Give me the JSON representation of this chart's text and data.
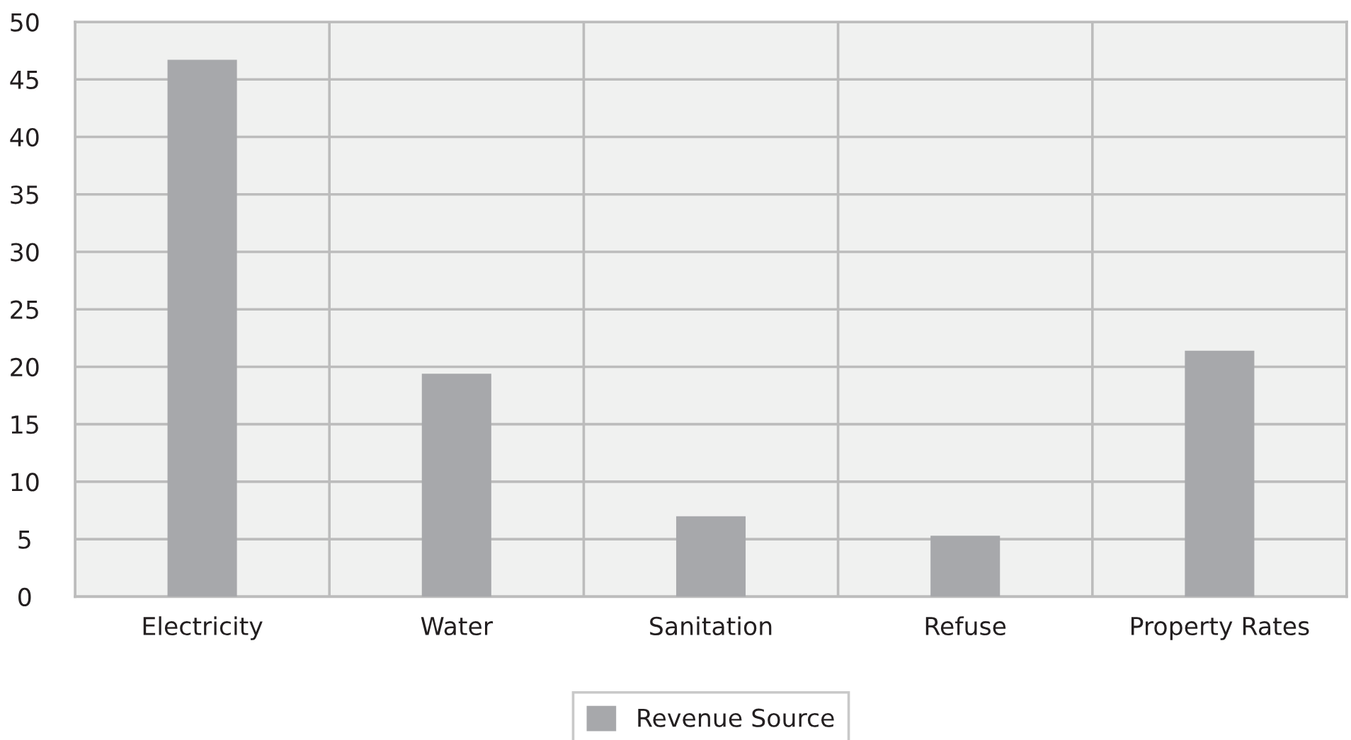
{
  "chart_data": {
    "type": "bar",
    "categories": [
      "Electricity",
      "Water",
      "Sanitation",
      "Refuse",
      "Property Rates"
    ],
    "series": [
      {
        "name": "Revenue Source",
        "color": "#a7a8ab",
        "values": [
          46.7,
          19.4,
          7.0,
          5.3,
          21.4
        ]
      }
    ],
    "ylim": [
      0,
      50
    ],
    "yticks": [
      0,
      5,
      10,
      15,
      20,
      25,
      30,
      35,
      40,
      45,
      50
    ],
    "grid": true,
    "legend": "bottom"
  }
}
